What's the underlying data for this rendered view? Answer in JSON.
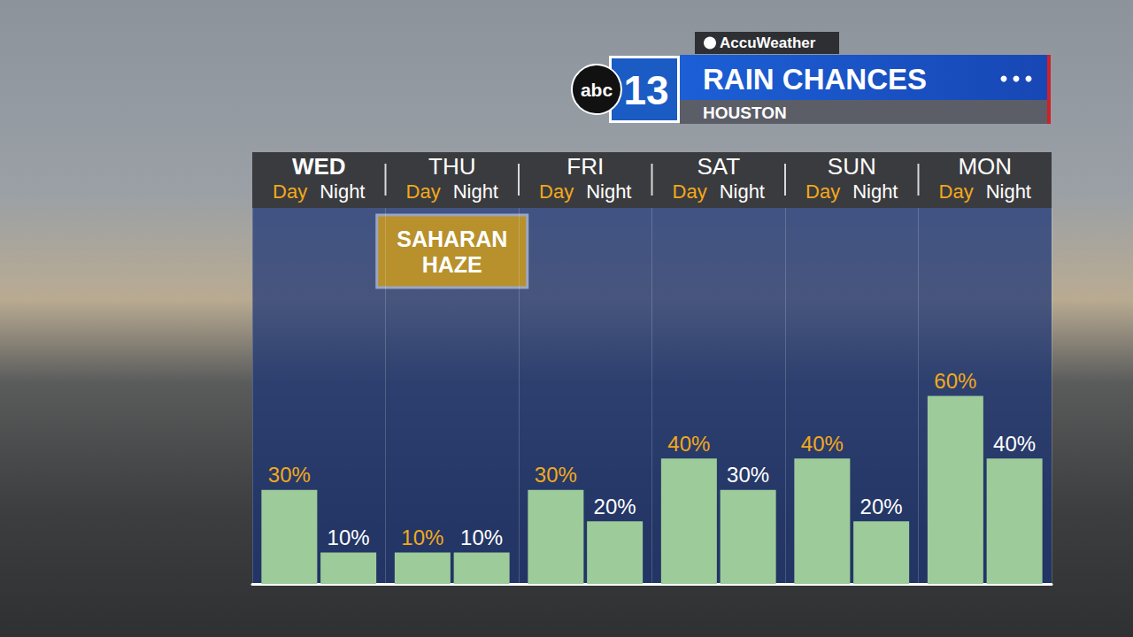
{
  "chart_data": {
    "type": "bar",
    "title": "RAIN CHANCES",
    "subtitle": "HOUSTON",
    "provider": "AccuWeather",
    "station_logo": [
      "abc",
      "13"
    ],
    "categories": [
      "WED",
      "THU",
      "FRI",
      "SAT",
      "SUN",
      "MON"
    ],
    "series": [
      {
        "name": "Day",
        "color": "#9dcc9a",
        "values": [
          30,
          10,
          30,
          40,
          40,
          60
        ],
        "value_labels": [
          "30%",
          "10%",
          "30%",
          "40%",
          "40%",
          "60%"
        ]
      },
      {
        "name": "Night",
        "color": "#9dcc9a",
        "values": [
          10,
          10,
          20,
          30,
          20,
          40
        ],
        "value_labels": [
          "10%",
          "10%",
          "20%",
          "30%",
          "20%",
          "40%"
        ]
      }
    ],
    "ylim": [
      0,
      120
    ],
    "yticks": [
      0,
      120
    ],
    "grid": false,
    "tick_labels": "x",
    "data_labels": true,
    "annotations": [
      {
        "text": "SAHARAN HAZE",
        "category": "THU"
      }
    ]
  }
}
